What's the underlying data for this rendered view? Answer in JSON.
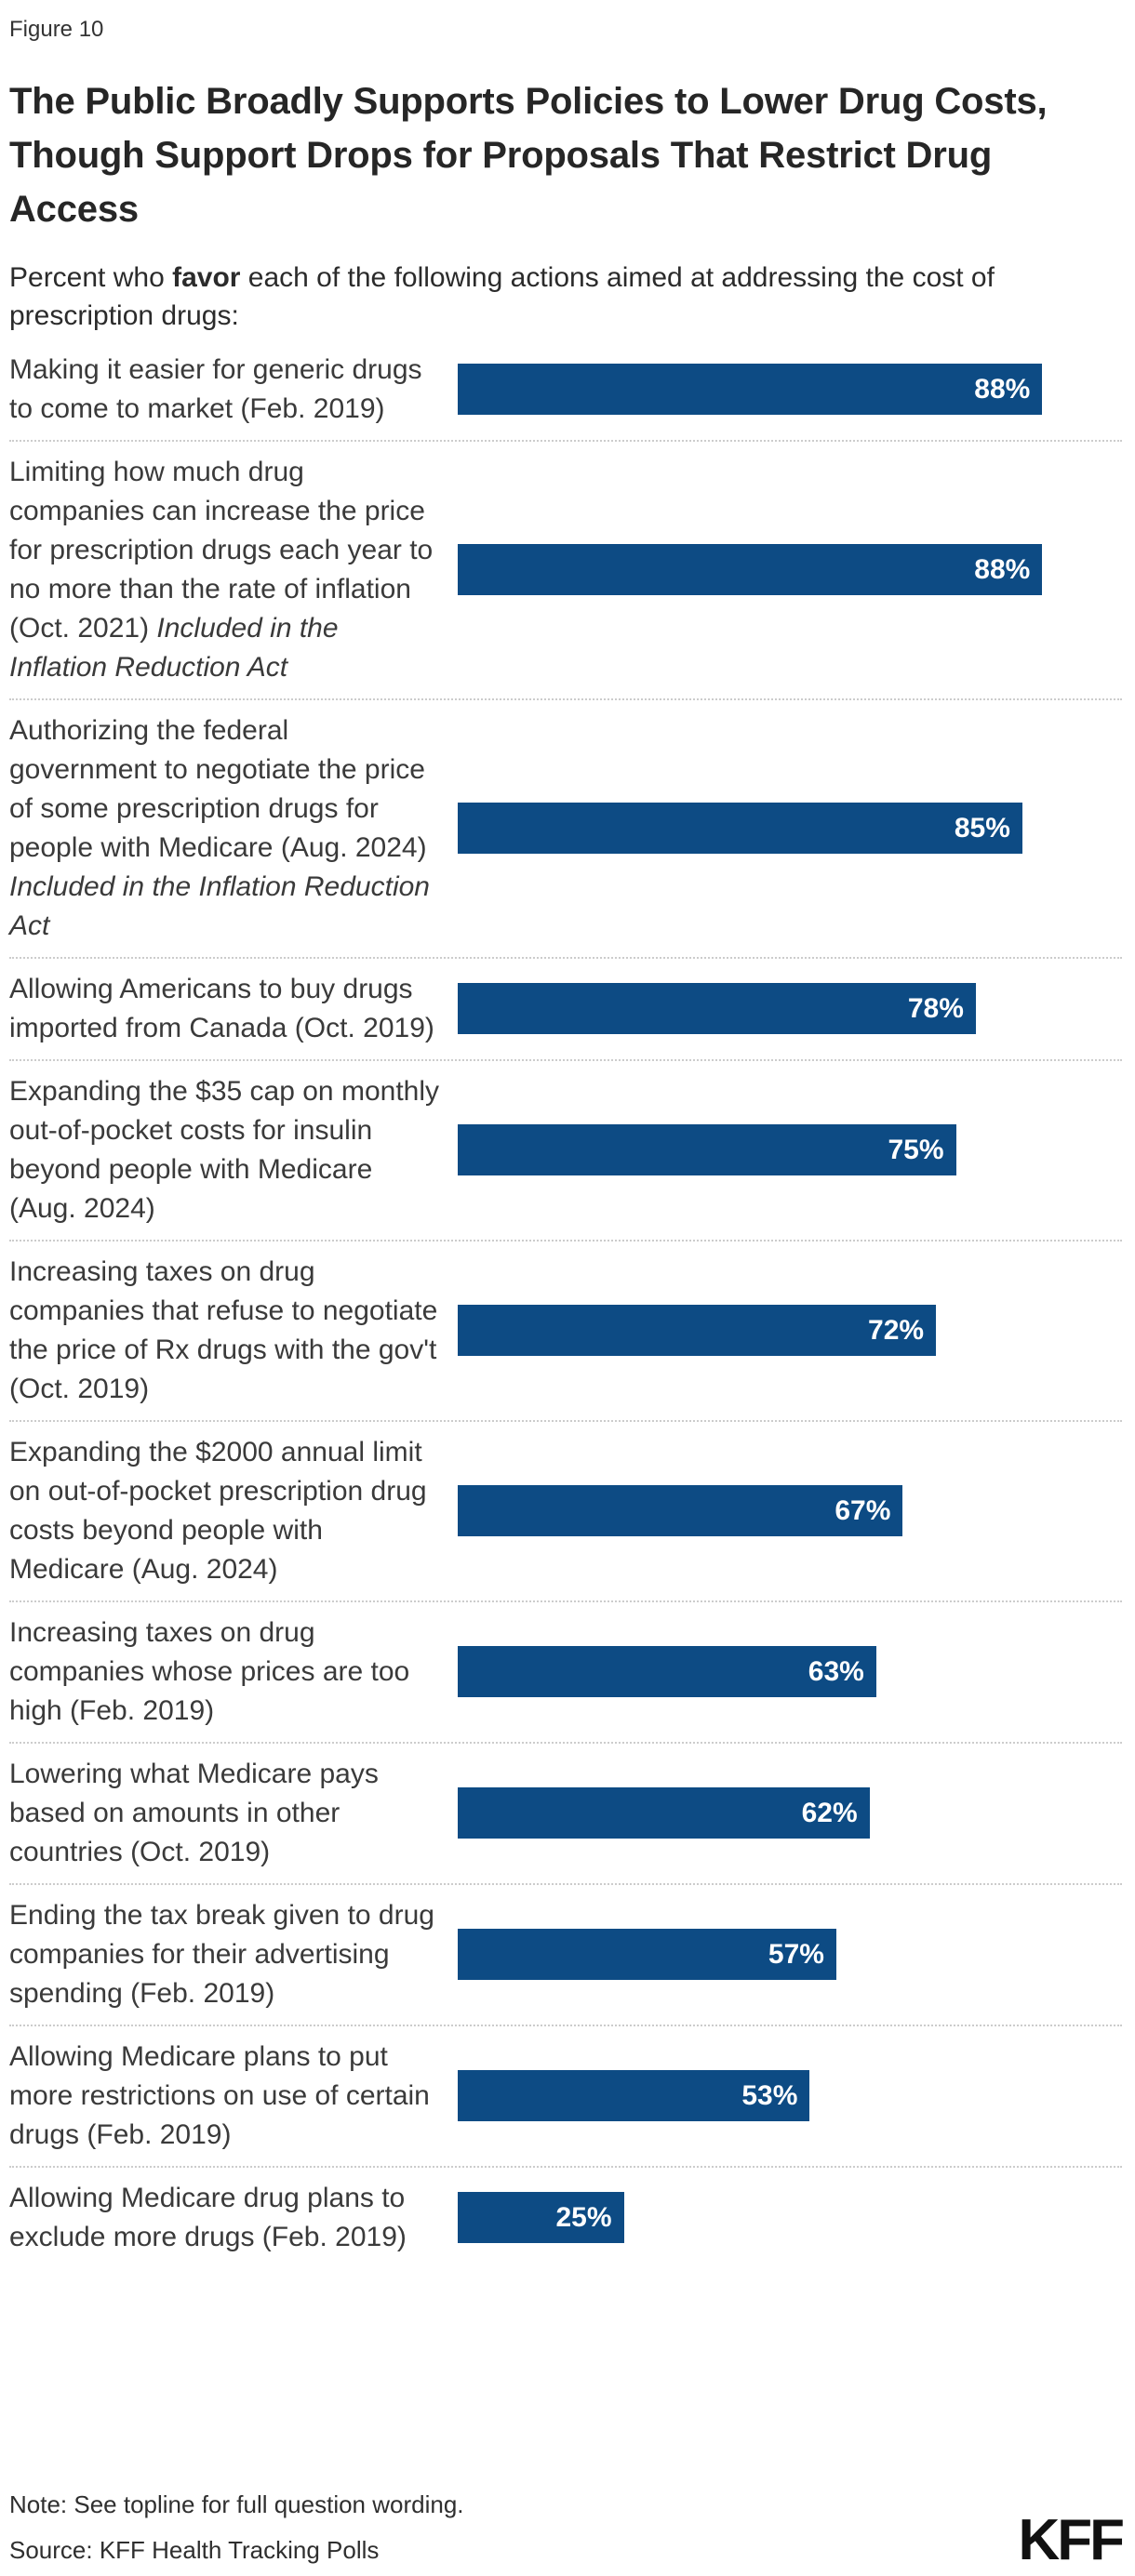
{
  "figure_label": "Figure 10",
  "title": {
    "line1": "The Public Broadly Supports Policies to Lower Drug Costs,",
    "line2": "Though Support Drops for Proposals That Restrict Drug Access"
  },
  "subtitle": {
    "prefix": "Percent who ",
    "bold": "favor",
    "suffix": " each of the following actions aimed at addressing the cost of prescription drugs:"
  },
  "note": "Note: See topline for full question wording.",
  "source": "Source: KFF Health Tracking Polls",
  "logo": "KFF",
  "colors": {
    "bar": "#0d4b84",
    "bar_value_text": "#ffffff",
    "separator": "#cccccc",
    "title_text": "#262626"
  },
  "chart_data": {
    "type": "bar",
    "orientation": "horizontal",
    "xlim": [
      0,
      100
    ],
    "value_suffix": "%",
    "grid": false,
    "legend": "none",
    "rows": [
      {
        "label": "Making it easier for generic drugs to come to market (Feb. 2019)",
        "italic": "",
        "value": 88,
        "display": "88%"
      },
      {
        "label": "Limiting how much drug companies can increase the price for prescription drugs each year to no more than the rate of inflation (Oct. 2021) ",
        "italic": "Included in the Inflation Reduction Act",
        "value": 88,
        "display": "88%"
      },
      {
        "label": "Authorizing the federal government to negotiate the price of some prescription drugs for people with Medicare (Aug. 2024) ",
        "italic": "Included in the Inflation Reduction Act",
        "value": 85,
        "display": "85%"
      },
      {
        "label": "Allowing Americans to buy drugs imported from Canada (Oct. 2019)",
        "italic": "",
        "value": 78,
        "display": "78%"
      },
      {
        "label": "Expanding the $35 cap on monthly out-of-pocket costs for insulin beyond people with Medicare (Aug. 2024)",
        "italic": "",
        "value": 75,
        "display": "75%"
      },
      {
        "label": "Increasing taxes on drug companies that refuse to negotiate the price of Rx drugs with the gov't (Oct. 2019)",
        "italic": "",
        "value": 72,
        "display": "72%"
      },
      {
        "label": "Expanding the $2000 annual limit on out-of-pocket prescription drug costs beyond people with Medicare (Aug. 2024)",
        "italic": "",
        "value": 67,
        "display": "67%"
      },
      {
        "label": "Increasing taxes on drug companies whose prices are too high (Feb. 2019)",
        "italic": "",
        "value": 63,
        "display": "63%"
      },
      {
        "label": "Lowering what Medicare pays based on amounts in other countries (Oct. 2019)",
        "italic": "",
        "value": 62,
        "display": "62%"
      },
      {
        "label": "Ending the tax break given to drug companies for their advertising spending (Feb. 2019)",
        "italic": "",
        "value": 57,
        "display": "57%"
      },
      {
        "label": "Allowing Medicare plans to put more restrictions on use of certain drugs (Feb. 2019)",
        "italic": "",
        "value": 53,
        "display": "53%"
      },
      {
        "label": "Allowing Medicare drug plans to exclude more drugs (Feb. 2019)",
        "italic": "",
        "value": 25,
        "display": "25%"
      }
    ]
  }
}
